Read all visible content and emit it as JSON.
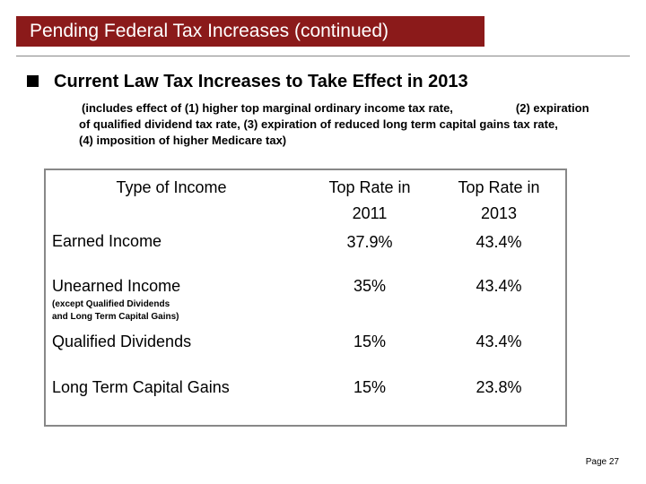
{
  "slide": {
    "title": "Pending Federal Tax Increases (continued)",
    "bullet_heading": "Current Law Tax Increases to Take Effect in 2013",
    "note_line1a": "(includes effect of (1) higher top marginal ordinary income tax rate,",
    "note_line1b": "(2) expiration",
    "note_line2": "of qualified dividend tax rate, (3) expiration of reduced long term capital gains tax rate,",
    "note_line3": "(4) imposition of higher Medicare tax)",
    "page_label": "Page 27"
  },
  "table": {
    "col_type_header": "Type of Income",
    "col_2011_header_line1": "Top Rate in",
    "col_2011_header_line2": "2011",
    "col_2013_header_line1": "Top Rate in",
    "col_2013_header_line2": "2013",
    "rows": [
      {
        "label": "Earned Income",
        "sub": "",
        "rate2011": "37.9%",
        "rate2013": "43.4%"
      },
      {
        "label": "Unearned Income",
        "sub_line1": "(except Qualified Dividends",
        "sub_line2": "and Long Term Capital Gains)",
        "rate2011": "35%",
        "rate2013": "43.4%"
      },
      {
        "label": "Qualified Dividends",
        "sub": "",
        "rate2011": "15%",
        "rate2013": "43.4%"
      },
      {
        "label": "Long Term Capital Gains",
        "sub": "",
        "rate2011": "15%",
        "rate2013": "23.8%"
      }
    ]
  }
}
